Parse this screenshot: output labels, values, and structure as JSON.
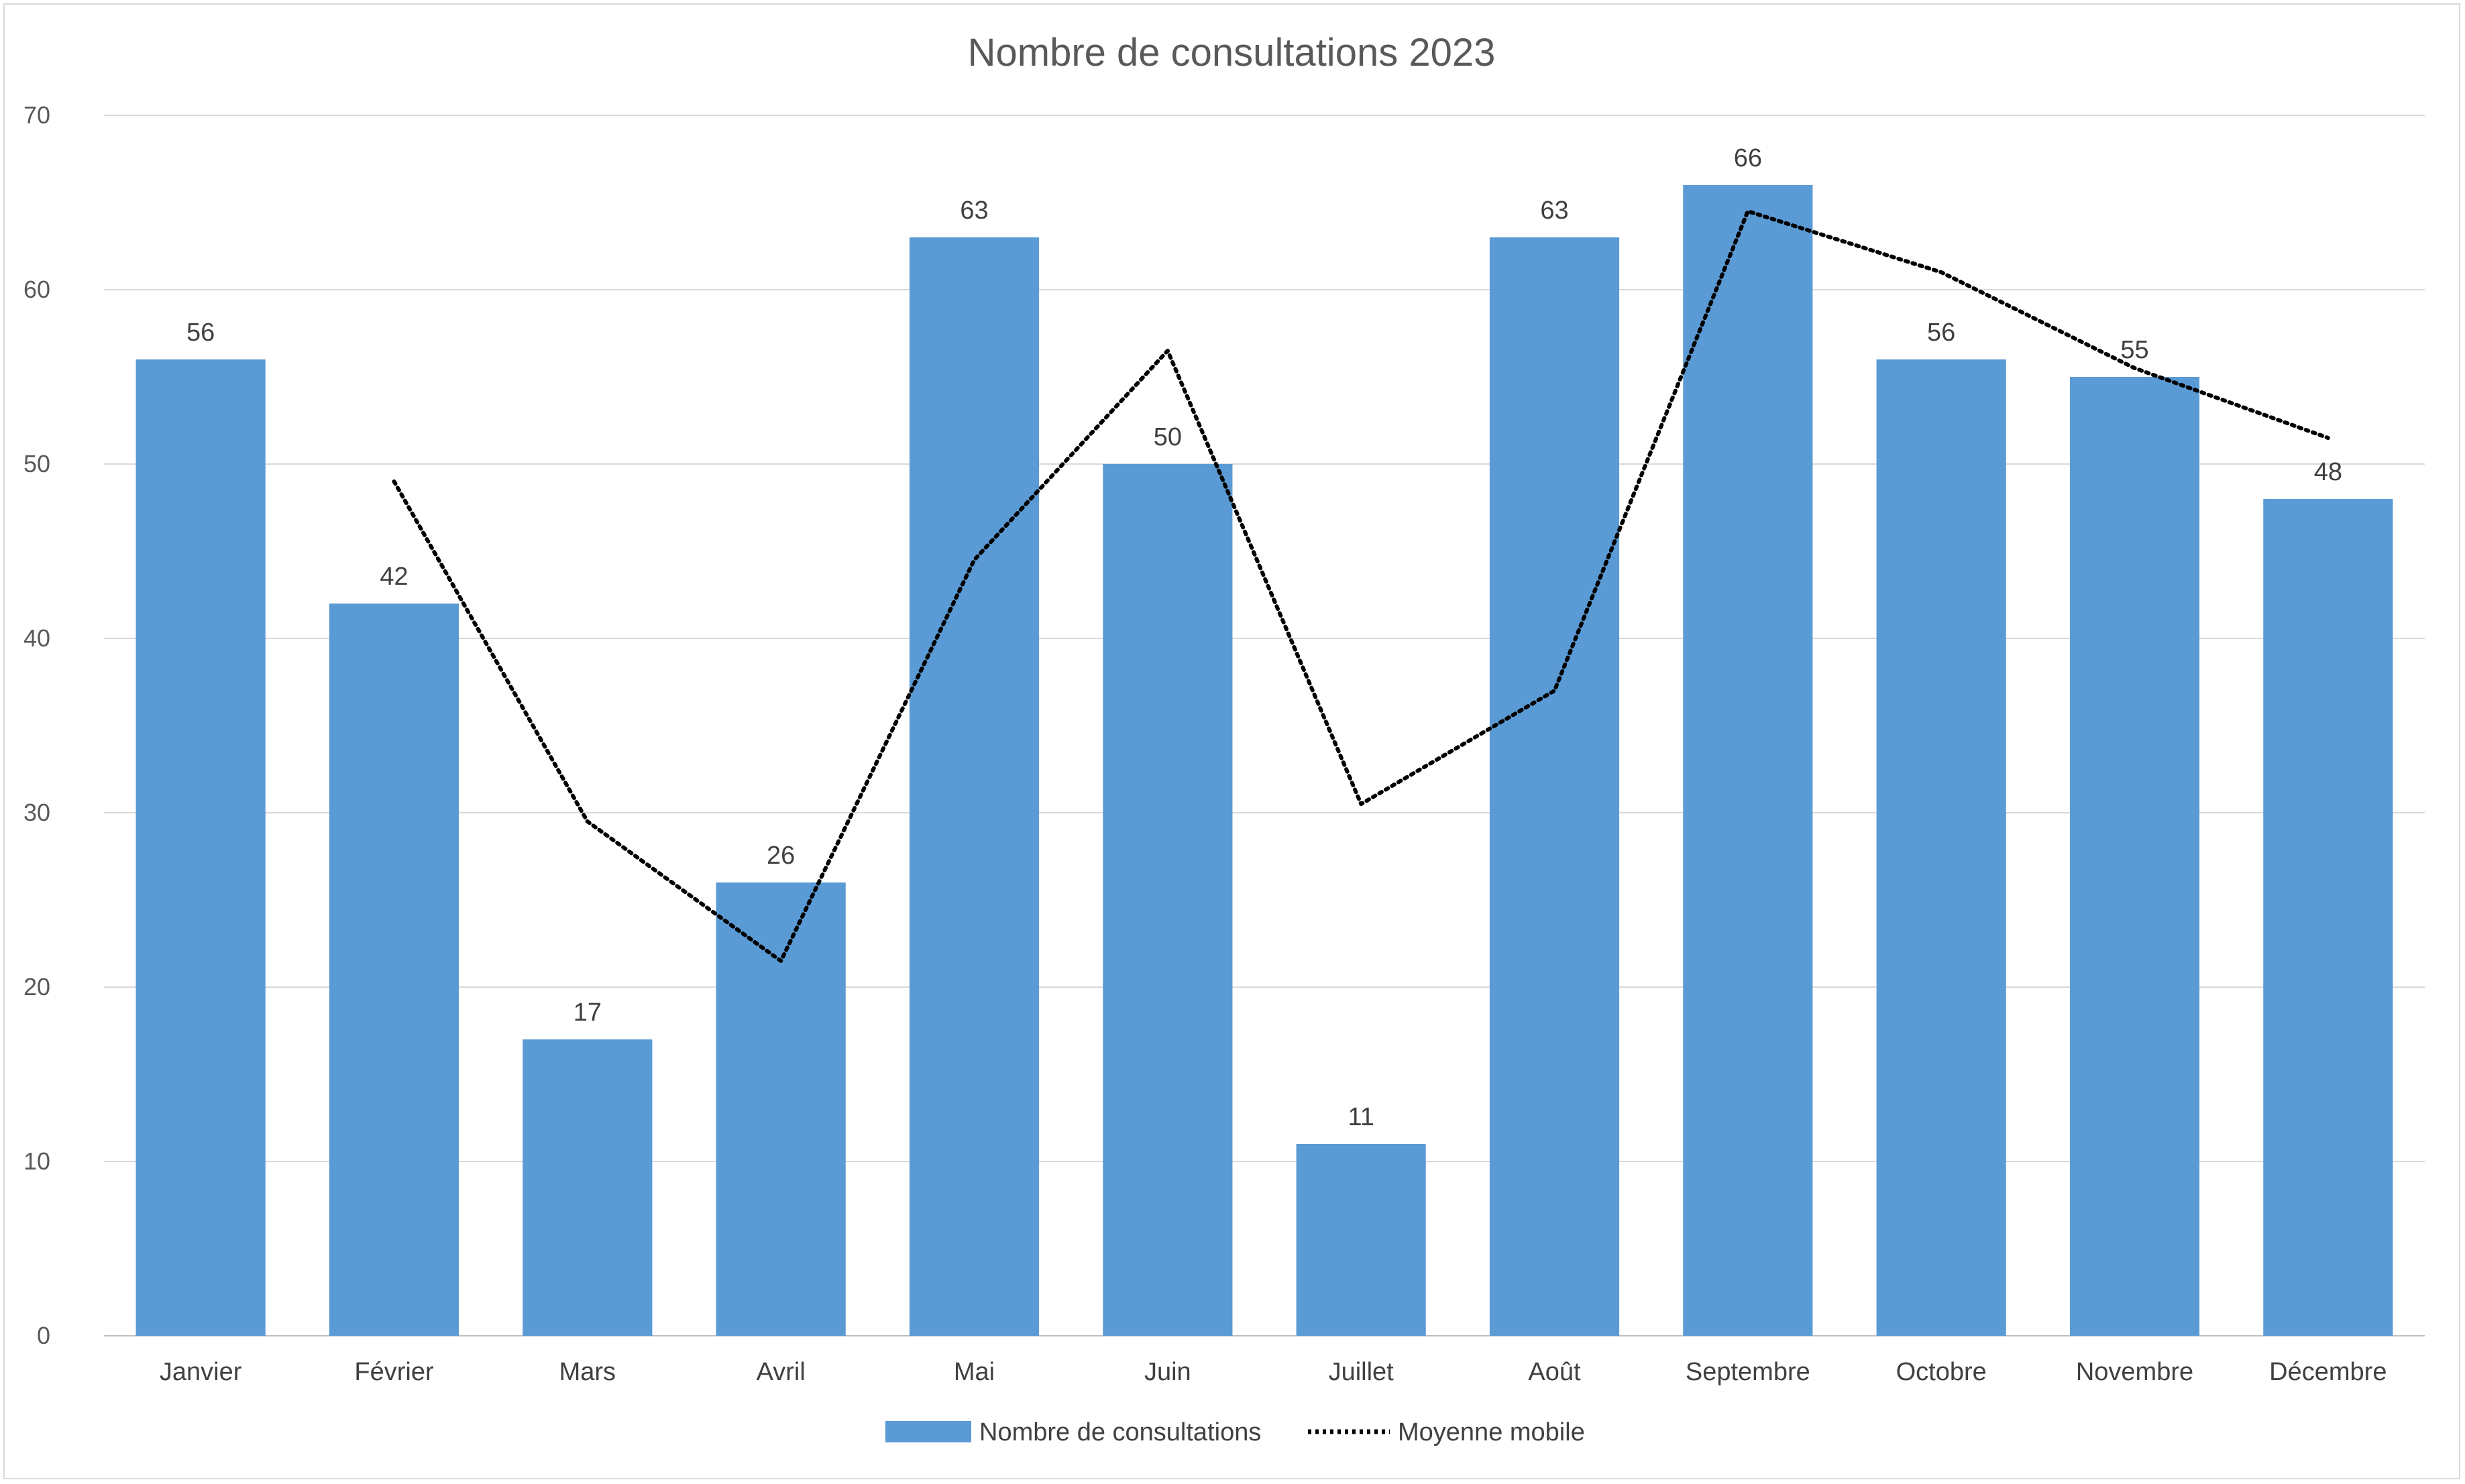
{
  "chart_data": {
    "type": "bar",
    "title": "Nombre de consultations 2023",
    "categories": [
      "Janvier",
      "Février",
      "Mars",
      "Avril",
      "Mai",
      "Juin",
      "Juillet",
      "Août",
      "Septembre",
      "Octobre",
      "Novembre",
      "Décembre"
    ],
    "series": [
      {
        "name": "Nombre de consultations",
        "type": "bar",
        "color": "#5B9BD5",
        "values": [
          56,
          42,
          17,
          26,
          63,
          50,
          11,
          63,
          66,
          56,
          55,
          48
        ]
      },
      {
        "name": "Moyenne mobile",
        "type": "line",
        "style": "dotted",
        "color": "#000000",
        "values": [
          null,
          49,
          29.5,
          21.5,
          44.5,
          56.5,
          30.5,
          37,
          64.5,
          61,
          55.5,
          51.5
        ]
      }
    ],
    "y_ticks": [
      "0",
      "10",
      "20",
      "30",
      "40",
      "50",
      "60",
      "70"
    ],
    "ylim": [
      0,
      70
    ],
    "grid": true,
    "legend_position": "bottom"
  }
}
